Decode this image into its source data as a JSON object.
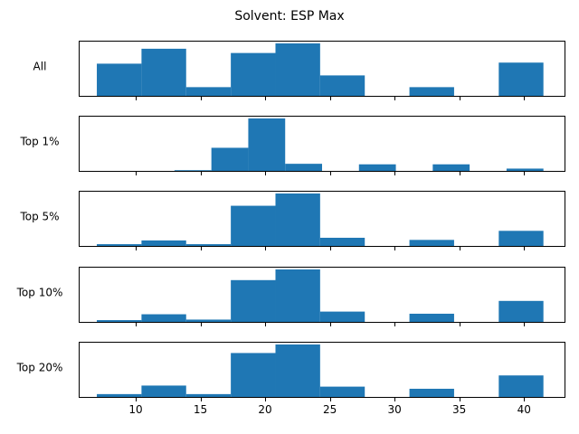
{
  "chart_data": {
    "type": "bar",
    "title": "Solvent: ESP Max",
    "xlabel": "",
    "ylabel": "",
    "grid": false,
    "xlim": [
      5.6,
      43.2
    ],
    "xticks": [
      10,
      15,
      20,
      25,
      30,
      35,
      40
    ],
    "bar_color": "#1f77b4",
    "panels": [
      {
        "label": "All",
        "bins": [
          {
            "x0": 7.0,
            "x1": 10.45,
            "value": 0.62
          },
          {
            "x0": 10.45,
            "x1": 13.9,
            "value": 0.9
          },
          {
            "x0": 13.9,
            "x1": 17.35,
            "value": 0.18
          },
          {
            "x0": 17.35,
            "x1": 20.8,
            "value": 0.82
          },
          {
            "x0": 20.8,
            "x1": 24.25,
            "value": 1.0
          },
          {
            "x0": 24.25,
            "x1": 27.7,
            "value": 0.4
          },
          {
            "x0": 31.15,
            "x1": 34.6,
            "value": 0.18
          },
          {
            "x0": 38.05,
            "x1": 41.5,
            "value": 0.64
          }
        ]
      },
      {
        "label": "Top 1%",
        "bins": [
          {
            "x0": 13.0,
            "x1": 15.85,
            "value": 0.03
          },
          {
            "x0": 15.85,
            "x1": 18.7,
            "value": 0.45
          },
          {
            "x0": 18.7,
            "x1": 21.55,
            "value": 1.0
          },
          {
            "x0": 21.55,
            "x1": 24.4,
            "value": 0.15
          },
          {
            "x0": 27.25,
            "x1": 30.1,
            "value": 0.14
          },
          {
            "x0": 32.95,
            "x1": 35.8,
            "value": 0.14
          },
          {
            "x0": 38.65,
            "x1": 41.5,
            "value": 0.06
          }
        ]
      },
      {
        "label": "Top 5%",
        "bins": [
          {
            "x0": 7.0,
            "x1": 10.45,
            "value": 0.05
          },
          {
            "x0": 10.45,
            "x1": 13.9,
            "value": 0.12
          },
          {
            "x0": 13.9,
            "x1": 17.35,
            "value": 0.05
          },
          {
            "x0": 17.35,
            "x1": 20.8,
            "value": 0.77
          },
          {
            "x0": 20.8,
            "x1": 24.25,
            "value": 1.0
          },
          {
            "x0": 24.25,
            "x1": 27.7,
            "value": 0.17
          },
          {
            "x0": 31.15,
            "x1": 34.6,
            "value": 0.13
          },
          {
            "x0": 38.05,
            "x1": 41.5,
            "value": 0.3
          }
        ]
      },
      {
        "label": "Top 10%",
        "bins": [
          {
            "x0": 7.0,
            "x1": 10.45,
            "value": 0.05
          },
          {
            "x0": 10.45,
            "x1": 13.9,
            "value": 0.16
          },
          {
            "x0": 13.9,
            "x1": 17.35,
            "value": 0.06
          },
          {
            "x0": 17.35,
            "x1": 20.8,
            "value": 0.8
          },
          {
            "x0": 20.8,
            "x1": 24.25,
            "value": 1.0
          },
          {
            "x0": 24.25,
            "x1": 27.7,
            "value": 0.21
          },
          {
            "x0": 31.15,
            "x1": 34.6,
            "value": 0.17
          },
          {
            "x0": 38.05,
            "x1": 41.5,
            "value": 0.41
          }
        ]
      },
      {
        "label": "Top 20%",
        "bins": [
          {
            "x0": 7.0,
            "x1": 10.45,
            "value": 0.07
          },
          {
            "x0": 10.45,
            "x1": 13.9,
            "value": 0.23
          },
          {
            "x0": 13.9,
            "x1": 17.35,
            "value": 0.07
          },
          {
            "x0": 17.35,
            "x1": 20.8,
            "value": 0.84
          },
          {
            "x0": 20.8,
            "x1": 24.25,
            "value": 1.0
          },
          {
            "x0": 24.25,
            "x1": 27.7,
            "value": 0.21
          },
          {
            "x0": 31.15,
            "x1": 34.6,
            "value": 0.17
          },
          {
            "x0": 38.05,
            "x1": 41.5,
            "value": 0.42
          }
        ]
      }
    ]
  }
}
